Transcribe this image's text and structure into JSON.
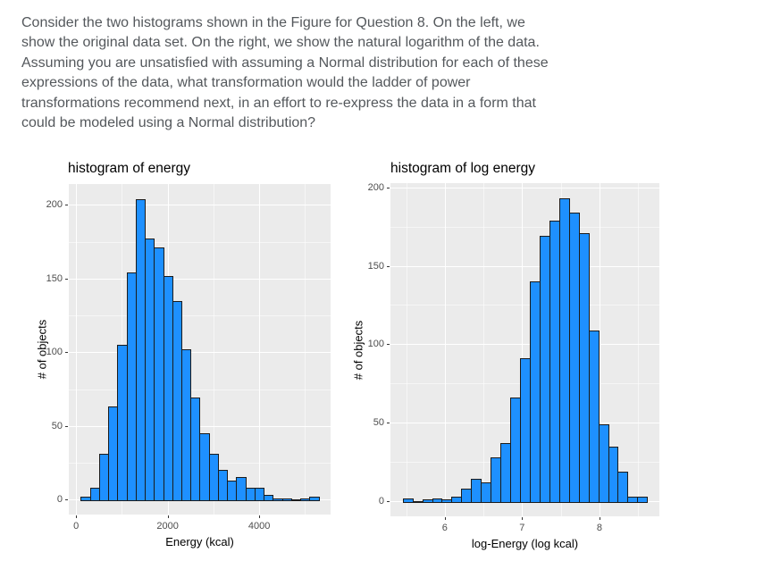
{
  "question": {
    "lines": [
      "Consider the two histograms shown in the Figure for Question 8. On the left, we",
      "show the original data set. On the right, we show the natural logarithm of the data.",
      "Assuming you are unsatisfied with assuming a Normal distribution for each of these",
      "expressions of the data, what transformation would the ladder of power",
      "transformations recommend next, in an effort to re-express the data in a form that",
      "could be modeled using a Normal distribution?"
    ]
  },
  "colors": {
    "bar_fill": "#1E90FF",
    "bar_stroke": "#1b1b1b",
    "panel_bg": "#EBEBEB",
    "gridline": "#FFFFFF",
    "tick_label": "#4d4d4d",
    "question_text": "#54585c"
  },
  "chart_data": [
    {
      "type": "bar",
      "title": "histogram of energy",
      "xlabel": "Energy (kcal)",
      "ylabel": "# of objects",
      "bin_start": 100,
      "bin_width": 200,
      "values": [
        2,
        8,
        31,
        63,
        105,
        154,
        204,
        177,
        171,
        152,
        135,
        102,
        69,
        45,
        31,
        20,
        13,
        15,
        8,
        8,
        3,
        1,
        1,
        0,
        1,
        2
      ],
      "ylim": [
        0,
        204
      ],
      "yticks": [
        0,
        50,
        100,
        150,
        200
      ],
      "yticks_minor": [
        25,
        75,
        125,
        175
      ],
      "xticks": [
        0,
        2000,
        4000
      ],
      "xticks_minor": [
        1000,
        3000,
        5000
      ],
      "grid": true,
      "legend": false
    },
    {
      "type": "bar",
      "title": "histogram of log energy",
      "xlabel": "log-Energy (log kcal)",
      "ylabel": "# of objects",
      "bin_start": 5.455,
      "bin_width": 0.1265,
      "values": [
        2,
        0,
        1,
        2,
        1,
        3,
        8,
        14,
        12,
        28,
        37,
        66,
        91,
        140,
        169,
        179,
        193,
        184,
        171,
        109,
        49,
        35,
        19,
        3,
        3
      ],
      "ylim": [
        0,
        193
      ],
      "yticks": [
        0,
        50,
        100,
        150,
        200
      ],
      "yticks_minor": [
        25,
        75,
        125,
        175
      ],
      "xticks": [
        6,
        7,
        8
      ],
      "xticks_minor": [
        5.5,
        6.5,
        7.5,
        8.5
      ],
      "grid": true,
      "legend": false
    }
  ]
}
